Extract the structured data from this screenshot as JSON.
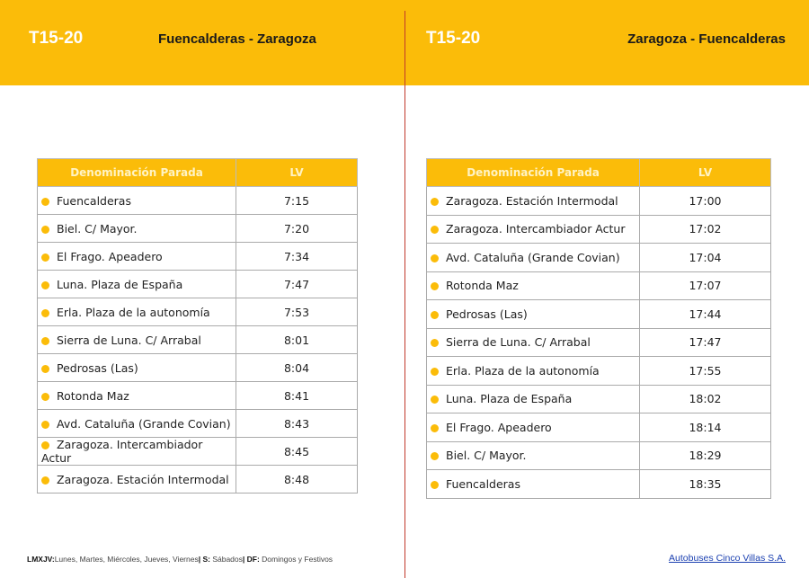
{
  "left": {
    "code": "T15-20",
    "route": "Fuencalderas - Zaragoza",
    "headers": [
      "Denominación Parada",
      "LV"
    ],
    "rows": [
      [
        "Fuencalderas",
        "7:15"
      ],
      [
        "Biel. C/ Mayor.",
        "7:20"
      ],
      [
        "El Frago. Apeadero",
        "7:34"
      ],
      [
        "Luna. Plaza de España",
        "7:47"
      ],
      [
        "Erla. Plaza de la autonomía",
        "7:53"
      ],
      [
        "Sierra de Luna. C/ Arrabal",
        "8:01"
      ],
      [
        "Pedrosas (Las)",
        "8:04"
      ],
      [
        "Rotonda Maz",
        "8:41"
      ],
      [
        "Avd. Cataluña (Grande Covian)",
        "8:43"
      ],
      [
        "Zaragoza. Intercambiador Actur",
        "8:45"
      ],
      [
        "Zaragoza. Estación Intermodal",
        "8:48"
      ]
    ]
  },
  "right": {
    "code": "T15-20",
    "route": "Zaragoza - Fuencalderas",
    "headers": [
      "Denominación Parada",
      "LV"
    ],
    "rows": [
      [
        "Zaragoza. Estación Intermodal",
        "17:00"
      ],
      [
        "Zaragoza. Intercambiador Actur",
        "17:02"
      ],
      [
        "Avd. Cataluña (Grande Covian)",
        "17:04"
      ],
      [
        "Rotonda Maz",
        "17:07"
      ],
      [
        "Pedrosas (Las)",
        "17:44"
      ],
      [
        "Sierra de Luna. C/ Arrabal",
        "17:47"
      ],
      [
        "Erla. Plaza de la autonomía",
        "17:55"
      ],
      [
        "Luna. Plaza de España",
        "18:02"
      ],
      [
        "El Frago. Apeadero",
        "18:14"
      ],
      [
        "Biel. C/ Mayor.",
        "18:29"
      ],
      [
        "Fuencalderas",
        "18:35"
      ]
    ]
  },
  "legend": {
    "k1": "LMXJV:",
    "v1": "Lunes, Martes, Miércoles, Jueves, Viernes",
    "k2": "| S:",
    "v2": "Sábados",
    "k3": "| DF:",
    "v3": "Domingos y Festivos"
  },
  "company": "Autobuses Cinco Villas S.A.",
  "colors": {
    "accent": "#fbbc09",
    "divider": "#c0392b"
  }
}
